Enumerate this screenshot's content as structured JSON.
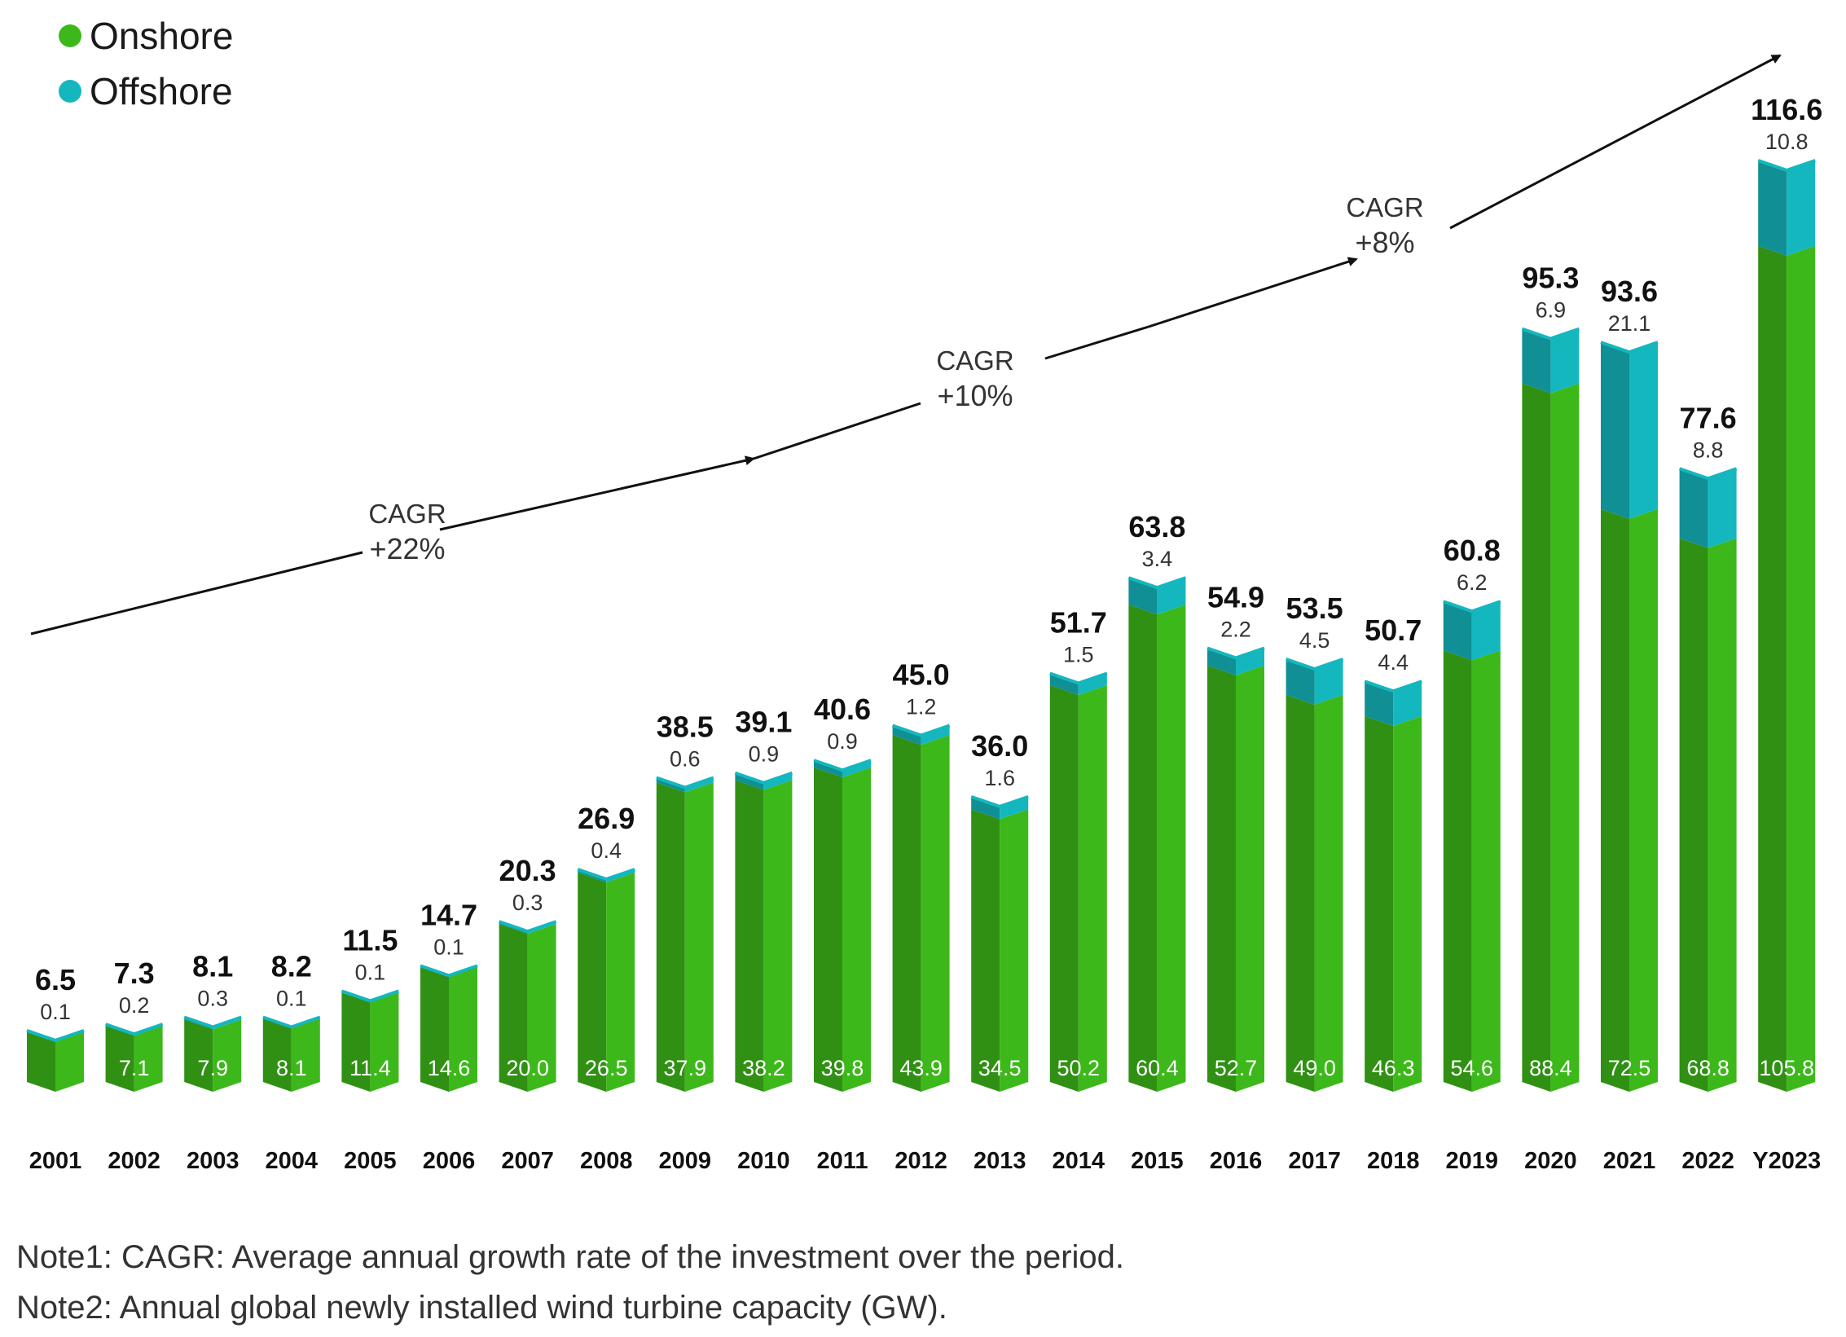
{
  "legend": {
    "onshore_label": "Onshore",
    "offshore_label": "Offshore",
    "onshore_color": "#3DB81A",
    "offshore_color": "#14B7BE"
  },
  "chart_data": {
    "type": "bar",
    "stacked": true,
    "categories": [
      "2001",
      "2002",
      "2003",
      "2004",
      "2005",
      "2006",
      "2007",
      "2008",
      "2009",
      "2010",
      "2011",
      "2012",
      "2013",
      "2014",
      "2015",
      "2016",
      "2017",
      "2018",
      "2019",
      "2020",
      "2021",
      "2022",
      "Y2023"
    ],
    "series": [
      {
        "name": "Onshore",
        "values": [
          6.4,
          7.1,
          7.9,
          8.1,
          11.4,
          14.6,
          20.0,
          26.5,
          37.9,
          38.2,
          39.8,
          43.9,
          34.5,
          50.2,
          60.4,
          52.7,
          49.0,
          46.3,
          54.6,
          88.4,
          72.5,
          68.8,
          105.8
        ]
      },
      {
        "name": "Offshore",
        "values": [
          0.1,
          0.2,
          0.3,
          0.1,
          0.1,
          0.1,
          0.3,
          0.4,
          0.6,
          0.9,
          0.9,
          1.2,
          1.6,
          1.5,
          3.4,
          2.2,
          4.5,
          4.4,
          6.2,
          6.9,
          21.1,
          8.8,
          10.8
        ]
      }
    ],
    "onshore_labels": [
      "",
      "7.1",
      "7.9",
      "8.1",
      "11.4",
      "14.6",
      "20.0",
      "26.5",
      "37.9",
      "38.2",
      "39.8",
      "43.9",
      "34.5",
      "50.2",
      "60.4",
      "52.7",
      "49.0",
      "46.3",
      "54.6",
      "88.4",
      "72.5",
      "68.8",
      "105.8"
    ],
    "offshore_labels": [
      "0.1",
      "0.2",
      "0.3",
      "0.1",
      "0.1",
      "0.1",
      "0.3",
      "0.4",
      "0.6",
      "0.9",
      "0.9",
      "1.2",
      "1.6",
      "1.5",
      "3.4",
      "2.2",
      "4.5",
      "4.4",
      "6.2",
      "6.9",
      "21.1",
      "8.8",
      "10.8"
    ],
    "totals": [
      "6.5",
      "7.3",
      "8.1",
      "8.2",
      "11.5",
      "14.7",
      "20.3",
      "26.9",
      "38.5",
      "39.1",
      "40.6",
      "45.0",
      "36.0",
      "51.7",
      "63.8",
      "54.9",
      "53.5",
      "50.7",
      "60.8",
      "95.3",
      "93.6",
      "77.6",
      "116.6"
    ],
    "ylim": [
      0,
      120
    ],
    "annotations": [
      {
        "line1": "CAGR",
        "line2": "+22%"
      },
      {
        "line1": "CAGR",
        "line2": "+10%"
      },
      {
        "line1": "CAGR",
        "line2": "+8%"
      }
    ],
    "xlabel": "",
    "ylabel": "",
    "title": ""
  },
  "notes": {
    "note1": "Note1: CAGR: Average annual growth rate of the investment over the period.",
    "note2": "Note2: Annual global newly installed wind turbine capacity (GW)."
  }
}
